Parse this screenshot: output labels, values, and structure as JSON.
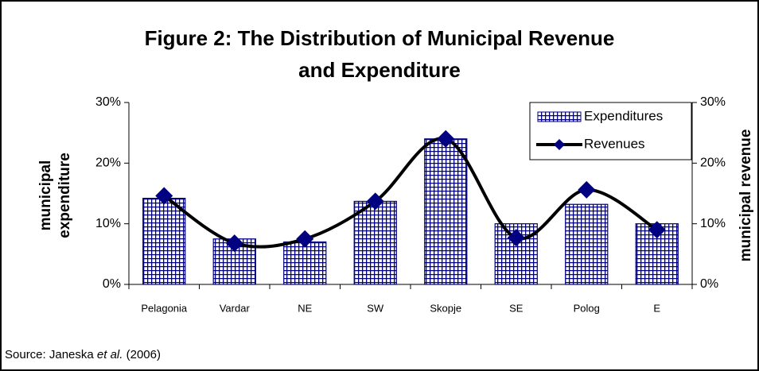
{
  "chart_data": {
    "type": "bar_line",
    "title_lines": [
      "Figure 2: The Distribution of Municipal Revenue",
      "and Expenditure"
    ],
    "ylabel_lines": [
      "municipal",
      "expenditure"
    ],
    "y2label": "municipal revenue",
    "categories": [
      "Pelagonia",
      "Vardar",
      "NE",
      "SW",
      "Skopje",
      "SE",
      "Polog",
      "E"
    ],
    "series": [
      {
        "name": "Expenditures",
        "type": "bar",
        "color": "#000080",
        "values": [
          14.2,
          7.5,
          7.0,
          13.7,
          24.0,
          10.0,
          13.2,
          10.0
        ]
      },
      {
        "name": "Revenues",
        "type": "line",
        "axis": "y2",
        "color": "#000000",
        "marker_color": "#000080",
        "values": [
          14.6,
          6.8,
          7.5,
          13.7,
          24.0,
          7.7,
          15.6,
          9.0
        ]
      }
    ],
    "ylim": [
      0,
      30
    ],
    "yticks": [
      {
        "value": 0,
        "label": "0%"
      },
      {
        "value": 10,
        "label": "10%"
      },
      {
        "value": 20,
        "label": "20%"
      },
      {
        "value": 30,
        "label": "30%"
      }
    ],
    "y2lim": [
      0,
      30
    ],
    "y2ticks": [
      {
        "value": 0,
        "label": "0%"
      },
      {
        "value": 10,
        "label": "10%"
      },
      {
        "value": 20,
        "label": "20%"
      },
      {
        "value": 30,
        "label": "30%"
      }
    ],
    "legend": "top-right",
    "source": {
      "prefix": "Source: Janeska",
      "emphasis": "et al.",
      "suffix": "(2006)"
    }
  }
}
